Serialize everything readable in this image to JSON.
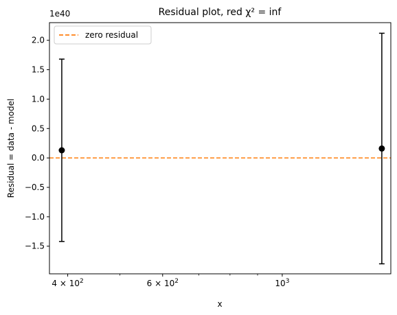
{
  "chart_data": {
    "type": "scatter",
    "title": "Residual plot, red χ² = inf",
    "xlabel": "x",
    "ylabel": "Residual = data - model",
    "x_scale": "log",
    "xlim": [
      370,
      1590
    ],
    "ylim": [
      -1.97e+40,
      2.3e+40
    ],
    "y_offset_label": "1e40",
    "x_ticks": [
      {
        "value": 400,
        "label": "4 × 10²",
        "mantissa": "4 × 10",
        "exp": "2"
      },
      {
        "value": 600,
        "label": "6 × 10²",
        "mantissa": "6 × 10",
        "exp": "2"
      },
      {
        "value": 1000,
        "label": "10³",
        "mantissa": "10",
        "exp": "3"
      }
    ],
    "x_minor_ticks": [
      500,
      700,
      800,
      900
    ],
    "y_ticks": [
      {
        "value": -1.5e+40,
        "label": "−1.5"
      },
      {
        "value": -1e+40,
        "label": "−1.0"
      },
      {
        "value": -5e+39,
        "label": "−0.5"
      },
      {
        "value": 0,
        "label": "0.0"
      },
      {
        "value": 5e+39,
        "label": "0.5"
      },
      {
        "value": 1e+40,
        "label": "1.0"
      },
      {
        "value": 1.5e+40,
        "label": "1.5"
      },
      {
        "value": 2e+40,
        "label": "2.0"
      }
    ],
    "points": [
      {
        "x": 390,
        "y": 1.3e+39,
        "err_low": 1.55e+40,
        "err_high": 1.55e+40
      },
      {
        "x": 1530,
        "y": 1.6e+39,
        "err_low": 1.96e+40,
        "err_high": 1.96e+40
      }
    ],
    "reference_line": {
      "y": 0,
      "label": "zero residual",
      "color": "#ff7f0e",
      "style": "dashed"
    },
    "legend": {
      "position": "top-left",
      "entries": [
        "zero residual"
      ]
    },
    "grid": false,
    "marker_color": "#000000"
  }
}
